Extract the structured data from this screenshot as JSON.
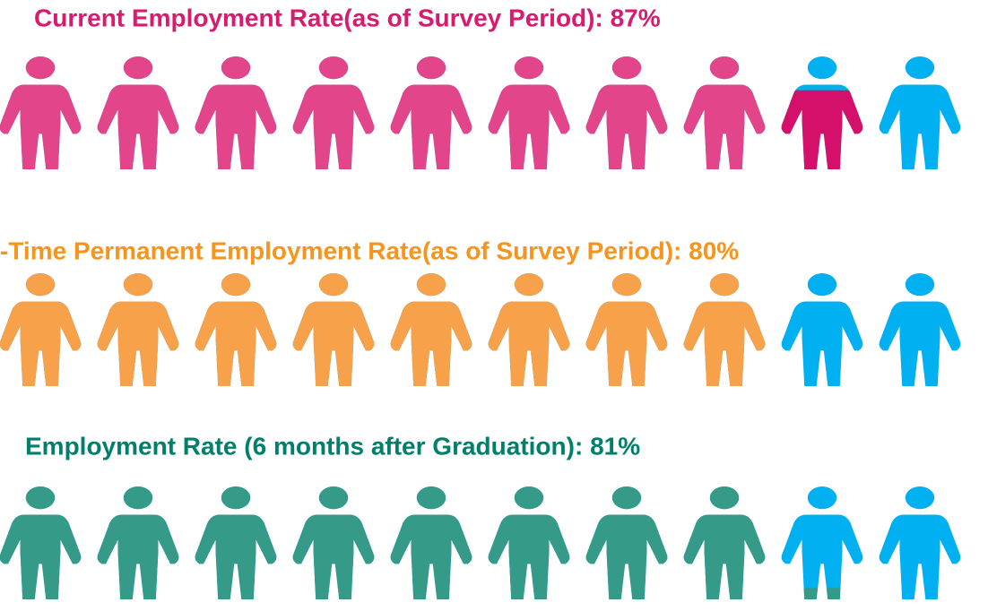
{
  "chart_data": [
    {
      "type": "pictogram",
      "title": "Current Employment Rate(as of Survey Period): 87%",
      "value": 87,
      "xlim": [
        0,
        100
      ],
      "color": "#e2458a",
      "fill_color": "#d4106a",
      "title_color": "#d81b6e",
      "empty_color": "#00b0f0"
    },
    {
      "type": "pictogram",
      "title": "-Time Permanent Employment Rate(as of Survey Period): 80%",
      "value": 80,
      "xlim": [
        0,
        100
      ],
      "color": "#f7a24b",
      "fill_color": "#f7a24b",
      "title_color": "#f7941d",
      "empty_color": "#00b0f0"
    },
    {
      "type": "pictogram",
      "title": "Employment Rate (6 months after Graduation): 81%",
      "value": 81,
      "xlim": [
        0,
        100
      ],
      "color": "#359a88",
      "fill_color": "#359a88",
      "title_color": "#00806a",
      "empty_color": "#00b0f0"
    }
  ]
}
